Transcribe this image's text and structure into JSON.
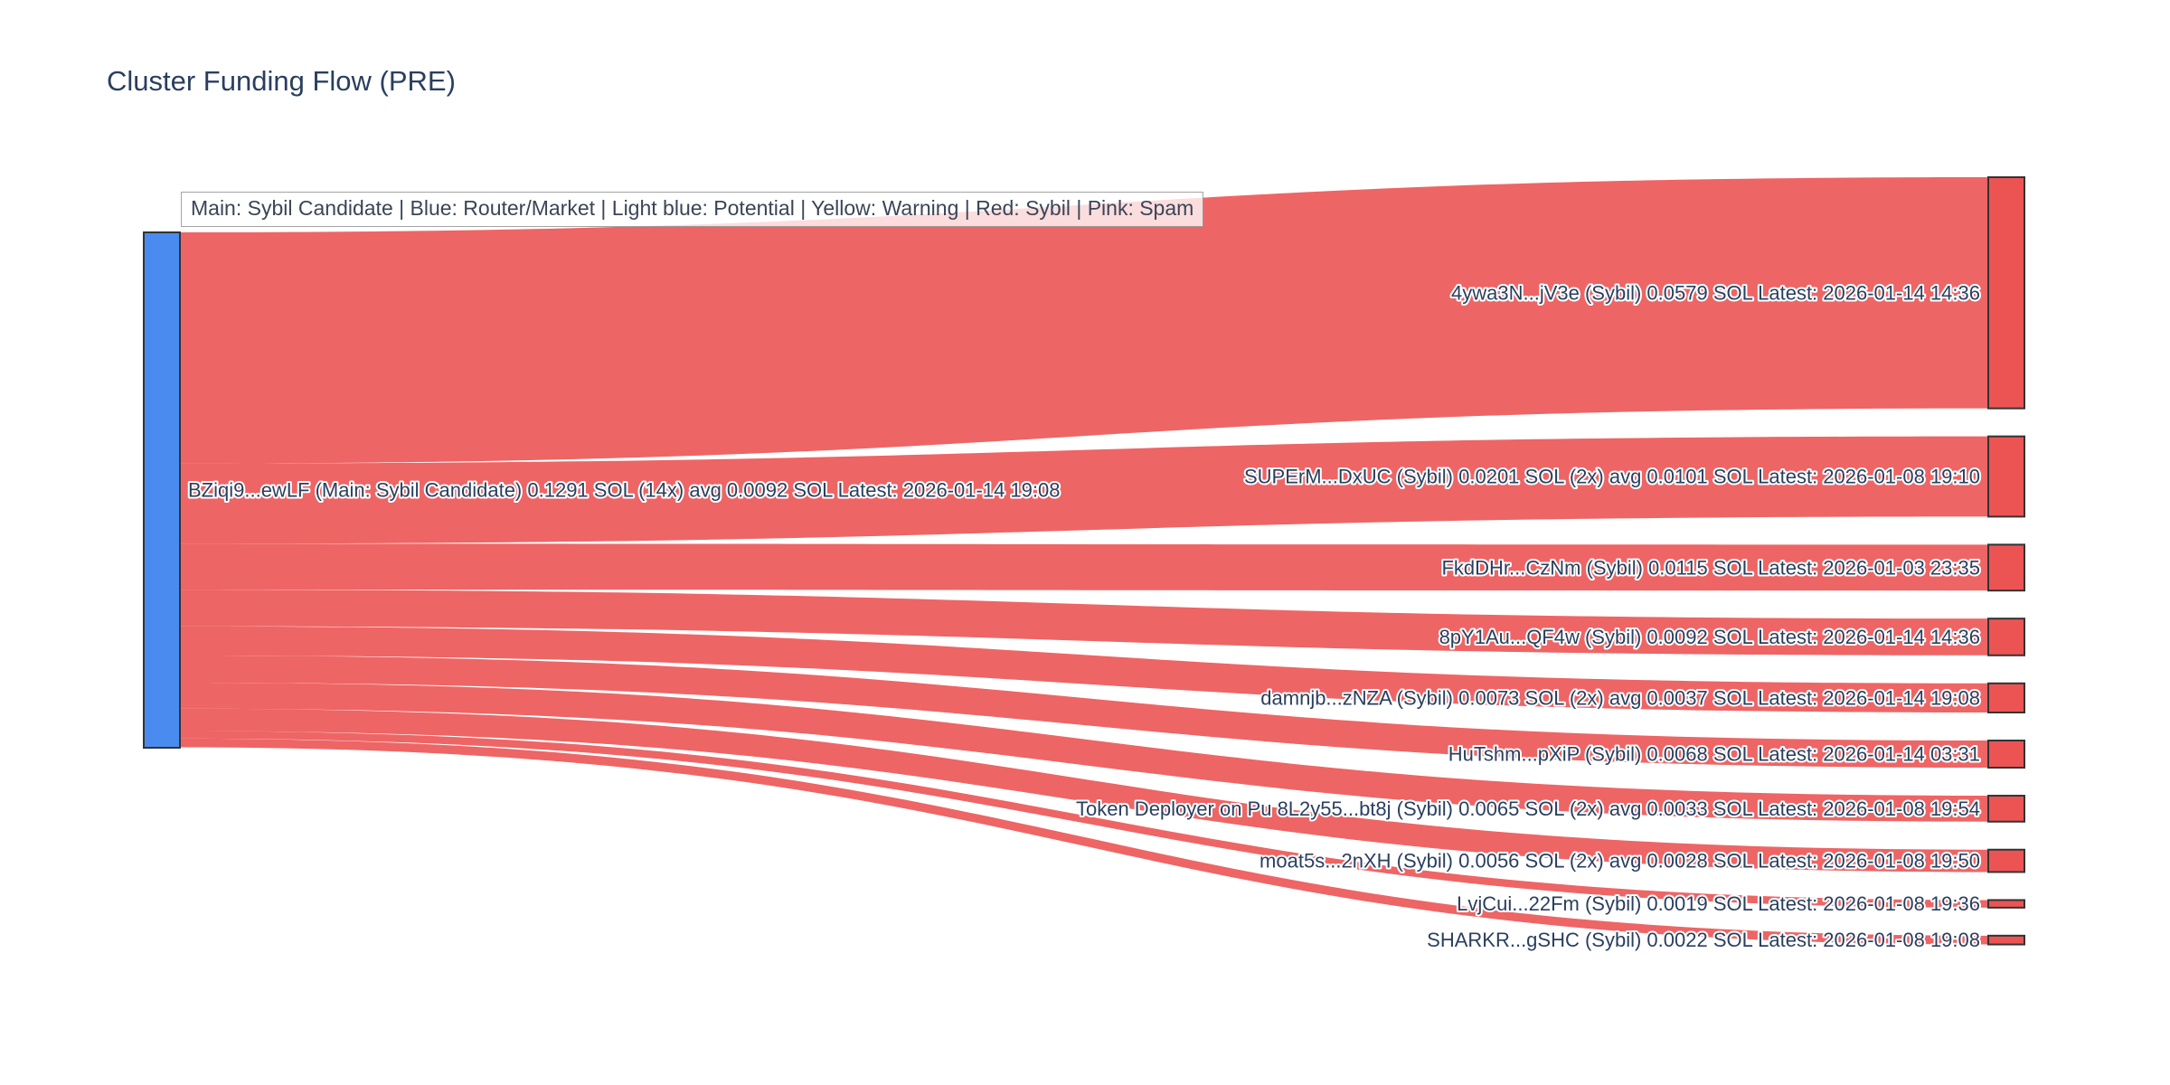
{
  "header": {
    "title": "Cluster Funding Flow (PRE)"
  },
  "chart_data": {
    "type": "sankey",
    "title": "Cluster Funding Flow (PRE)",
    "legend": "Main: Sybil Candidate  |  Blue: Router/Market | Light blue: Potential | Yellow: Warning | Red: Sybil | Pink: Spam",
    "layout": {
      "orientation": "horizontal",
      "source_column": "left",
      "target_column": "right",
      "legend_position": "top-left",
      "background": "#ffffff"
    },
    "colors": {
      "source_node": "#4a8bf0",
      "target_node": "#ec5454",
      "link": "rgba(236,84,84,0.9)",
      "node_border": "#333333",
      "label_text": "#2a3f5f",
      "title_text": "#2a3f5f"
    },
    "source_node": {
      "label": "BZiqi9...ewLF (Main: Sybil Candidate) 0.1291 SOL (14x) avg 0.0092 SOL Latest: 2026-01-14 19:08",
      "value_sol": 0.1291,
      "tx_count": "14x",
      "avg_sol": 0.0092,
      "latest": "2026-01-14 19:08"
    },
    "flows": [
      {
        "label": "4ywa3N...jV3e (Sybil) 0.0579 SOL Latest: 2026-01-14 14:36",
        "value_sol": 0.0579,
        "latest": "2026-01-14 14:36"
      },
      {
        "label": "SUPErM...DxUC (Sybil) 0.0201 SOL (2x) avg 0.0101 SOL Latest: 2026-01-08 19:10",
        "value_sol": 0.0201,
        "latest": "2026-01-08 19:10"
      },
      {
        "label": "FkdDHr...CzNm (Sybil) 0.0115 SOL Latest: 2026-01-03 23:35",
        "value_sol": 0.0115,
        "latest": "2026-01-03 23:35"
      },
      {
        "label": "8pY1Au...QF4w (Sybil) 0.0092 SOL Latest: 2026-01-14 14:36",
        "value_sol": 0.0092,
        "latest": "2026-01-14 14:36"
      },
      {
        "label": "damnjb...zNZA (Sybil) 0.0073 SOL (2x) avg 0.0037 SOL Latest: 2026-01-14 19:08",
        "value_sol": 0.0073,
        "latest": "2026-01-14 19:08"
      },
      {
        "label": "HuTshm...pXiP (Sybil) 0.0068 SOL Latest: 2026-01-14 03:31",
        "value_sol": 0.0068,
        "latest": "2026-01-14 03:31"
      },
      {
        "label": "Token Deployer on Pu 8L2y55...bt8j (Sybil) 0.0065 SOL (2x) avg 0.0033 SOL Latest: 2026-01-08 19:54",
        "value_sol": 0.0065,
        "latest": "2026-01-08 19:54"
      },
      {
        "label": "moat5s...2nXH (Sybil) 0.0056 SOL (2x) avg 0.0028 SOL Latest: 2026-01-08 19:50",
        "value_sol": 0.0056,
        "latest": "2026-01-08 19:50"
      },
      {
        "label": "LvjCui...22Fm (Sybil) 0.0019 SOL Latest: 2026-01-08 19:36",
        "value_sol": 0.0019,
        "latest": "2026-01-08 19:36"
      },
      {
        "label": "SHARKR...gSHC (Sybil) 0.0022 SOL Latest: 2026-01-08 19:08",
        "value_sol": 0.0022,
        "latest": "2026-01-08 19:08"
      }
    ]
  }
}
